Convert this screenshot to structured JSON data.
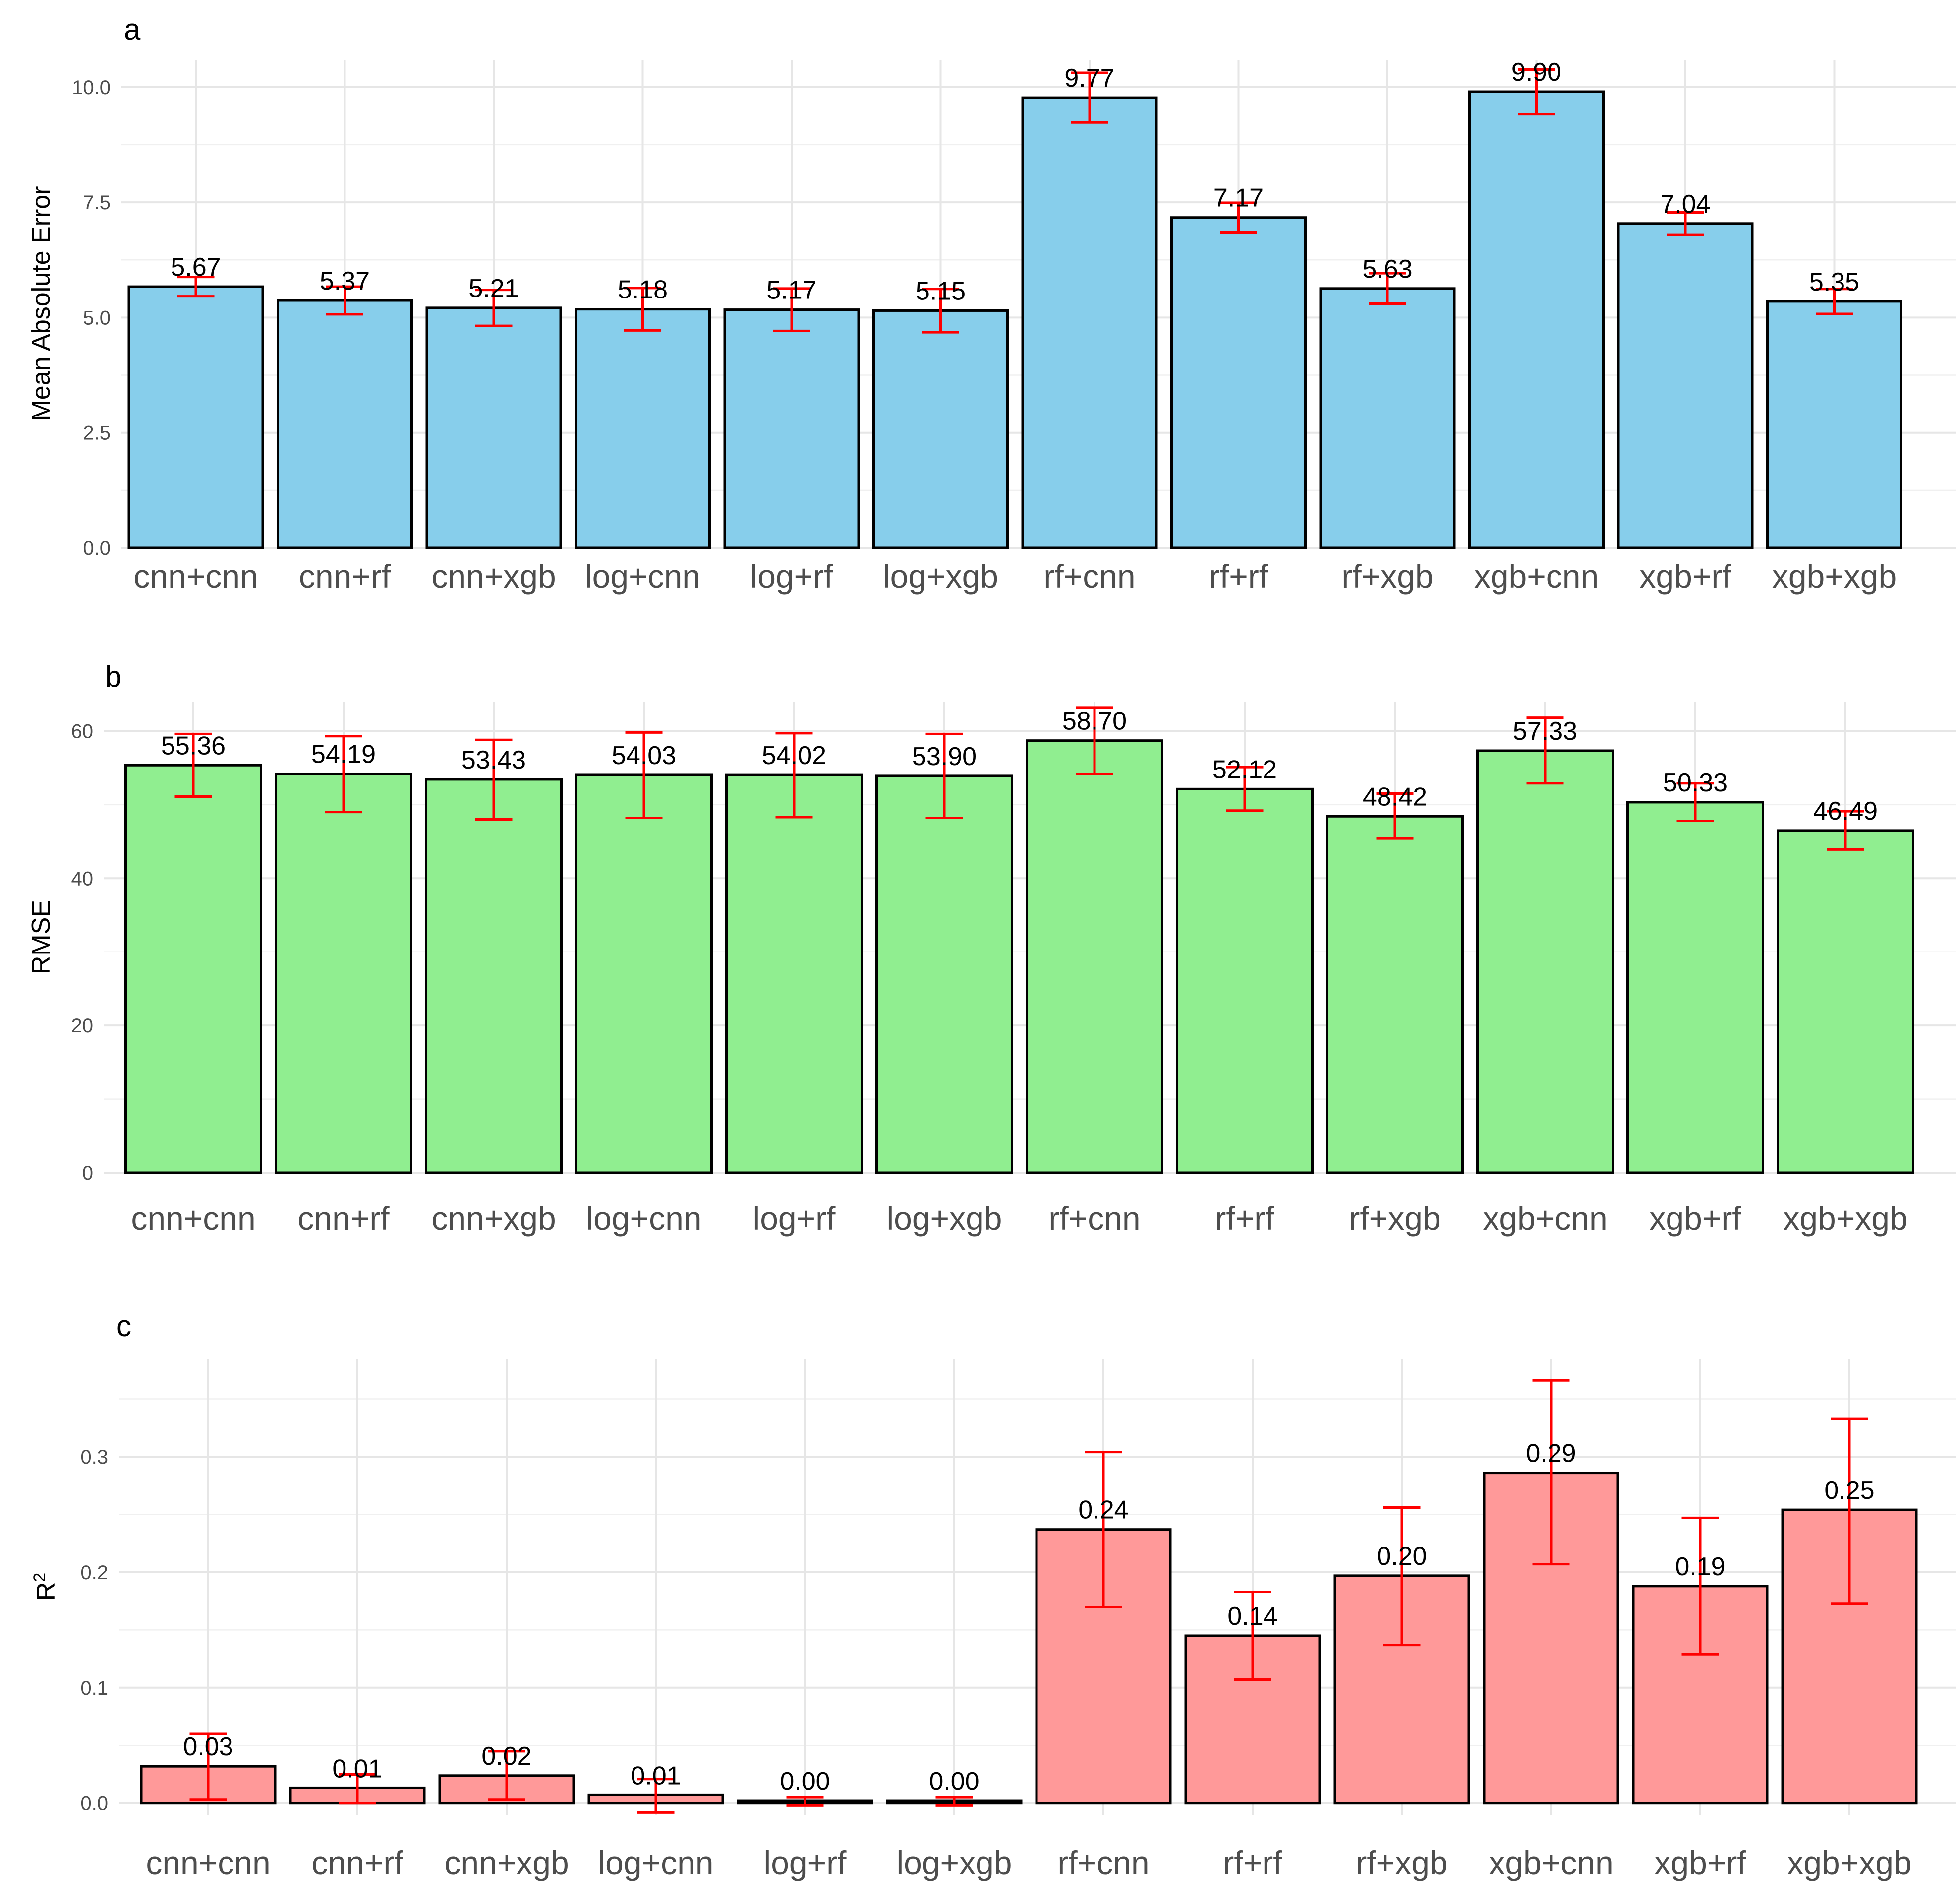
{
  "chart_data": [
    {
      "panel": "a",
      "type": "bar",
      "ylabel": "Mean Absolute Error",
      "xlabel": "",
      "ylim": [
        0,
        10.6
      ],
      "yticks": [
        0,
        2.5,
        5,
        7.5,
        10
      ],
      "ytick_labels": [
        "0.0",
        "2.5",
        "5.0",
        "7.5",
        "10.0"
      ],
      "categories": [
        "cnn+cnn",
        "cnn+rf",
        "cnn+xgb",
        "log+cnn",
        "log+rf",
        "log+xgb",
        "rf+cnn",
        "rf+rf",
        "rf+xgb",
        "xgb+cnn",
        "xgb+rf",
        "xgb+xgb"
      ],
      "values": [
        5.67,
        5.37,
        5.21,
        5.18,
        5.17,
        5.15,
        9.77,
        7.17,
        5.63,
        9.9,
        7.04,
        5.35
      ],
      "labels": [
        "5.67",
        "5.37",
        "5.21",
        "5.18",
        "5.17",
        "5.15",
        "9.77",
        "7.17",
        "5.63",
        "9.90",
        "7.04",
        "5.35"
      ],
      "err_low": [
        5.46,
        5.07,
        4.82,
        4.72,
        4.71,
        4.68,
        9.23,
        6.85,
        5.3,
        9.42,
        6.8,
        5.08
      ],
      "err_high": [
        5.88,
        5.67,
        5.6,
        5.64,
        5.63,
        5.62,
        10.31,
        7.49,
        5.96,
        10.38,
        7.28,
        5.62
      ],
      "bar_color": "#87CEEB",
      "error_color": "#FF0000"
    },
    {
      "panel": "b",
      "type": "bar",
      "ylabel": "RMSE",
      "xlabel": "",
      "ylim": [
        0,
        64
      ],
      "yticks": [
        0,
        20,
        40,
        60
      ],
      "ytick_labels": [
        "0",
        "20",
        "40",
        "60"
      ],
      "categories": [
        "cnn+cnn",
        "cnn+rf",
        "cnn+xgb",
        "log+cnn",
        "log+rf",
        "log+xgb",
        "rf+cnn",
        "rf+rf",
        "rf+xgb",
        "xgb+cnn",
        "xgb+rf",
        "xgb+xgb"
      ],
      "values": [
        55.36,
        54.19,
        53.43,
        54.03,
        54.02,
        53.9,
        58.7,
        52.12,
        48.42,
        57.33,
        50.33,
        46.49
      ],
      "labels": [
        "55.36",
        "54.19",
        "53.43",
        "54.03",
        "54.02",
        "53.90",
        "58.70",
        "52.12",
        "48.42",
        "57.33",
        "50.33",
        "46.49"
      ],
      "err_low": [
        51.1,
        49.0,
        48.0,
        48.2,
        48.3,
        48.2,
        54.2,
        49.2,
        45.4,
        52.9,
        47.8,
        43.9
      ],
      "err_high": [
        59.6,
        59.3,
        58.8,
        59.8,
        59.7,
        59.6,
        63.2,
        55.1,
        51.5,
        61.8,
        52.9,
        49.1
      ],
      "bar_color": "#90EE90",
      "error_color": "#FF0000"
    },
    {
      "panel": "c",
      "type": "bar",
      "ylabel": "R",
      "ylabel_superscript": "2",
      "xlabel": "",
      "ylim": [
        -0.01,
        0.385
      ],
      "yticks": [
        0,
        0.1,
        0.2,
        0.3
      ],
      "ytick_labels": [
        "0.0",
        "0.1",
        "0.2",
        "0.3"
      ],
      "categories": [
        "cnn+cnn",
        "cnn+rf",
        "cnn+xgb",
        "log+cnn",
        "log+rf",
        "log+xgb",
        "rf+cnn",
        "rf+rf",
        "rf+xgb",
        "xgb+cnn",
        "xgb+rf",
        "xgb+xgb"
      ],
      "values": [
        0.032,
        0.013,
        0.024,
        0.007,
        0.002,
        0.002,
        0.237,
        0.145,
        0.197,
        0.286,
        0.188,
        0.254
      ],
      "labels": [
        "0.03",
        "0.01",
        "0.02",
        "0.01",
        "0.00",
        "0.00",
        "0.24",
        "0.14",
        "0.20",
        "0.29",
        "0.19",
        "0.25"
      ],
      "err_low": [
        0.003,
        0.0,
        0.003,
        -0.008,
        -0.002,
        -0.002,
        0.17,
        0.107,
        0.137,
        0.207,
        0.129,
        0.173
      ],
      "err_high": [
        0.06,
        0.025,
        0.045,
        0.021,
        0.005,
        0.005,
        0.304,
        0.183,
        0.256,
        0.366,
        0.247,
        0.333
      ],
      "bar_color": "#FF9999",
      "error_color": "#FF0000"
    }
  ]
}
